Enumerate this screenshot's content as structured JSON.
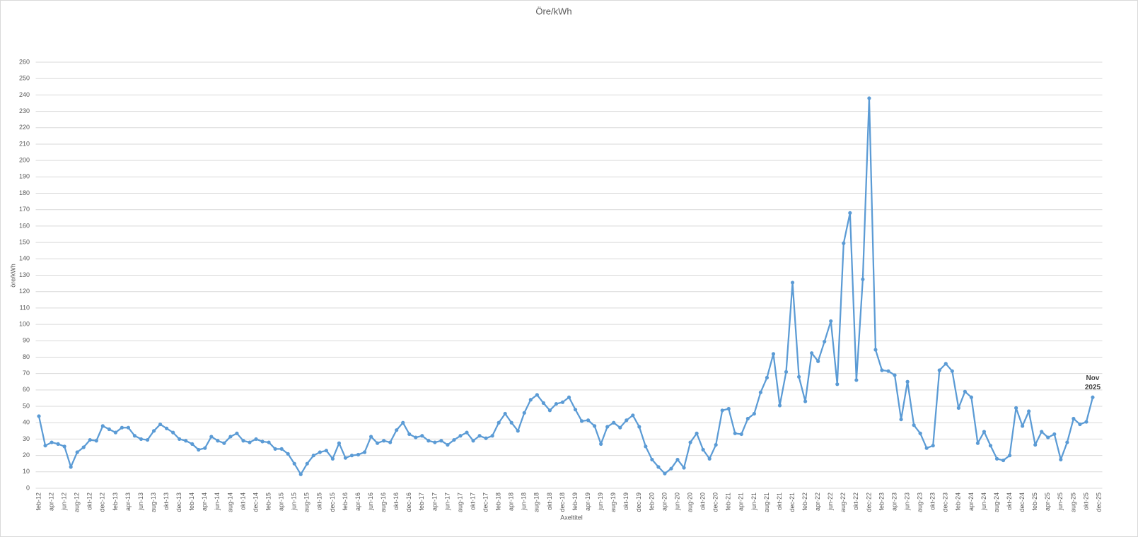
{
  "chart_data": {
    "type": "line",
    "title": "Öre/kWh",
    "y_label": "öre/kWh",
    "x_label": "Axeltitel",
    "annotation": "Nov 2025",
    "categories": [
      "feb-12",
      null,
      "apr-12",
      null,
      "jun-12",
      null,
      "aug-12",
      null,
      "okt-12",
      null,
      "dec-12",
      null,
      "feb-13",
      null,
      "apr-13",
      null,
      "jun-13",
      null,
      "aug-13",
      null,
      "okt-13",
      null,
      "dec-13",
      null,
      "feb-14",
      null,
      "apr-14",
      null,
      "jun-14",
      null,
      "aug-14",
      null,
      "okt-14",
      null,
      "dec-14",
      null,
      "feb-15",
      null,
      "apr-15",
      null,
      "jun-15",
      null,
      "aug-15",
      null,
      "okt-15",
      null,
      "dec-15",
      null,
      "feb-16",
      null,
      "apr-16",
      null,
      "jun-16",
      null,
      "aug-16",
      null,
      "okt-16",
      null,
      "dec-16",
      null,
      "feb-17",
      null,
      "apr-17",
      null,
      "jun-17",
      null,
      "aug-17",
      null,
      "okt-17",
      null,
      "dec-17",
      null,
      "feb-18",
      null,
      "apr-18",
      null,
      "jun-18",
      null,
      "aug-18",
      null,
      "okt-18",
      null,
      "dec-18",
      null,
      "feb-19",
      null,
      "apr-19",
      null,
      "jun-19",
      null,
      "aug-19",
      null,
      "okt-19",
      null,
      "dec-19",
      null,
      "feb-20",
      null,
      "apr-20",
      null,
      "jun-20",
      null,
      "aug-20",
      null,
      "okt-20",
      null,
      "dec-20",
      null,
      "feb-21",
      null,
      "apr-21",
      null,
      "jun-21",
      null,
      "aug-21",
      null,
      "okt-21",
      null,
      "dec-21",
      null,
      "feb-22",
      null,
      "apr-22",
      null,
      "jun-22",
      null,
      "aug-22",
      null,
      "okt-22",
      null,
      "dec-22",
      null,
      "feb-23",
      null,
      "apr-23",
      null,
      "jun-23",
      null,
      "aug-23",
      null,
      "okt-23",
      null,
      "dec-23",
      null,
      "feb-24",
      null,
      "apr-24",
      null,
      "jun-24",
      null,
      "aug-24",
      null,
      "okt-24",
      null,
      "dec-24",
      null,
      "feb-25",
      null,
      "apr-25",
      null,
      "jun-25",
      null,
      "aug-25",
      null,
      "okt-25",
      null,
      "dec-25"
    ],
    "values": [
      44,
      26,
      28,
      27,
      25.5,
      13,
      22,
      25,
      29.5,
      29,
      38,
      36,
      34,
      37,
      37,
      32,
      30,
      29.5,
      35,
      39,
      36.5,
      34,
      30,
      29,
      27,
      23.5,
      24.5,
      31.5,
      29,
      27.5,
      31.5,
      33.5,
      29,
      28,
      30,
      28.5,
      28,
      24,
      24,
      21,
      15,
      8.5,
      15,
      20,
      22,
      23,
      18,
      27.5,
      18.5,
      20,
      20.5,
      22,
      31.5,
      27.5,
      29,
      28,
      35.5,
      40,
      33,
      31,
      32,
      29,
      28,
      29,
      26.5,
      29.5,
      32,
      34,
      29,
      32,
      30.5,
      32,
      40,
      45.5,
      40,
      35,
      46,
      54,
      57,
      52,
      47.5,
      51.5,
      52.5,
      55.5,
      48,
      41,
      41.5,
      38,
      27,
      37.5,
      40,
      37,
      41.5,
      44.5,
      37.5,
      25.5,
      17.5,
      13,
      9,
      12,
      17.5,
      12.5,
      28,
      33.5,
      23.5,
      18,
      26.5,
      47.5,
      48.5,
      33.5,
      33,
      42.5,
      45.5,
      58.5,
      67.5,
      82,
      50.5,
      71,
      125.5,
      68,
      53,
      82.5,
      77.5,
      89.5,
      102,
      63.5,
      149.5,
      168,
      66,
      127.5,
      238,
      84.5,
      72,
      71.5,
      69,
      42,
      65,
      38.5,
      33.5,
      24.5,
      26,
      72,
      76,
      71.5,
      49,
      59,
      55.5,
      27.5,
      34.5,
      26,
      18,
      17,
      20,
      49,
      38,
      47,
      26.5,
      34.5,
      31,
      33,
      17.5,
      28,
      42.5,
      39,
      40.5,
      55.5,
      null
    ],
    "color": "#5b9bd5",
    "ylim": [
      0,
      260
    ],
    "yticks": [
      0,
      10,
      20,
      30,
      40,
      50,
      60,
      70,
      80,
      90,
      100,
      110,
      120,
      130,
      140,
      150,
      160,
      170,
      180,
      190,
      200,
      210,
      220,
      230,
      240,
      250,
      260
    ],
    "grid": true
  }
}
